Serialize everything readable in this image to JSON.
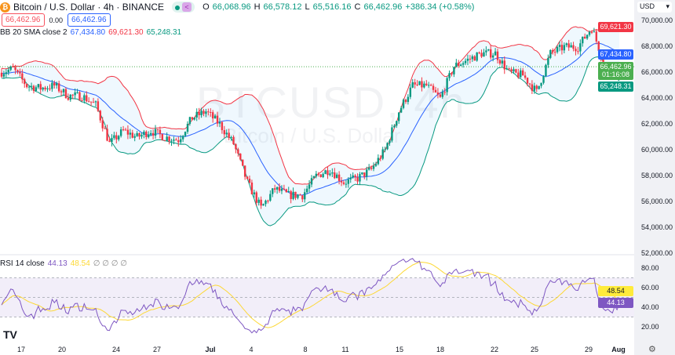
{
  "header": {
    "coin_icon": "bitcoin-icon",
    "title": "Bitcoin / U.S. Dollar · 4h · BINANCE",
    "open_label": "O",
    "open": "66,068.96",
    "high_label": "H",
    "high": "66,578.12",
    "low_label": "L",
    "low": "65,516.16",
    "close_label": "C",
    "close": "66,462.96",
    "change": "+386.34 (+0.58%)"
  },
  "order": {
    "sell": "66,462.96",
    "spread": "0.00",
    "buy": "66,462.96"
  },
  "bb": {
    "label": "BB 20 SMA close 2",
    "basis": "67,434.80",
    "upper": "69,621.30",
    "lower": "65,248.31"
  },
  "rsi": {
    "label": "RSI 14 close",
    "value": "44.13",
    "ma": "48.54",
    "extra": "∅ ∅ ∅ ∅"
  },
  "watermark": {
    "symbol": "BTCUSD, 4h",
    "name": "Bitcoin / U.S. Dollar"
  },
  "axis": {
    "currency": "USD",
    "price_ticks": [
      "70,000.00",
      "68,000.00",
      "66,000.00",
      "64,000.00",
      "62,000.00",
      "60,000.00",
      "58,000.00",
      "56,000.00",
      "54,000.00",
      "52,000.00"
    ],
    "rsi_ticks": [
      "80.00",
      "60.00",
      "40.00",
      "20.00"
    ],
    "countdown": "01:16:08"
  },
  "x_ticks": [
    "17",
    "20",
    "24",
    "27",
    "Jul",
    "4",
    "8",
    "11",
    "15",
    "18",
    "22",
    "25",
    "29",
    "Aug"
  ],
  "colors": {
    "up": "#089981",
    "down": "#f23645",
    "upper": "#f23645",
    "basis": "#2962ff",
    "lower": "#089981",
    "rsi": "#7e57c2",
    "rsi_ma": "#fdd835"
  },
  "chart_data": {
    "type": "candlestick",
    "timeframe": "4h",
    "daily_close_path": [
      66000,
      66300,
      65000,
      64800,
      65000,
      64200,
      64200,
      63500,
      60500,
      61500,
      61000,
      61500,
      61000,
      60800,
      62500,
      63000,
      62000,
      60500,
      57500,
      55500,
      57000,
      56500,
      56500,
      58000,
      58500,
      57500,
      57800,
      58500,
      60000,
      63000,
      65000,
      65000,
      64000,
      66500,
      67000,
      67500,
      67500,
      66000,
      65800,
      64500,
      67500,
      68000,
      68000,
      69500,
      66400,
      66463
    ],
    "ylim": [
      52000,
      70500
    ],
    "rsi_ylim": [
      10,
      90
    ],
    "rsi_bands": [
      30,
      70
    ]
  }
}
